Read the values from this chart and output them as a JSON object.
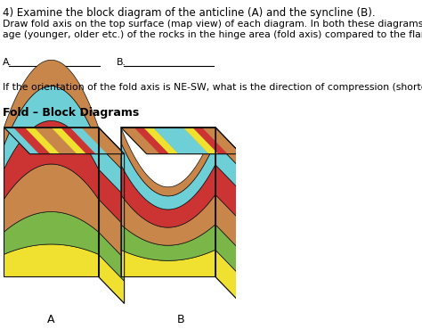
{
  "background_color": "#ffffff",
  "title_text": "4) Examine the block diagram of the anticline (A) and the syncline (B).",
  "body_text1": "Draw fold axis on the top surface (map view) of each diagram. In both these diagrams, state the relative\nage (younger, older etc.) of the rocks in the hinge area (fold axis) compared to the flanks (limbs).",
  "label_a": "A.",
  "label_b": "B.",
  "body_text2": "If the orientation of the fold axis is NE-SW, what is the direction of compression (shortening)?",
  "fold_label": "Fold – Block Diagrams",
  "font_size_title": 8.5,
  "font_size_body": 7.8,
  "font_size_fold_label": 9.0,
  "colors": {
    "cyan": "#6ecfd6",
    "red": "#cc3333",
    "yellow": "#f0e030",
    "brown": "#c8864a",
    "green": "#7ab648",
    "dark_outline": "#111111",
    "dark_brown": "#8b5a2b"
  }
}
